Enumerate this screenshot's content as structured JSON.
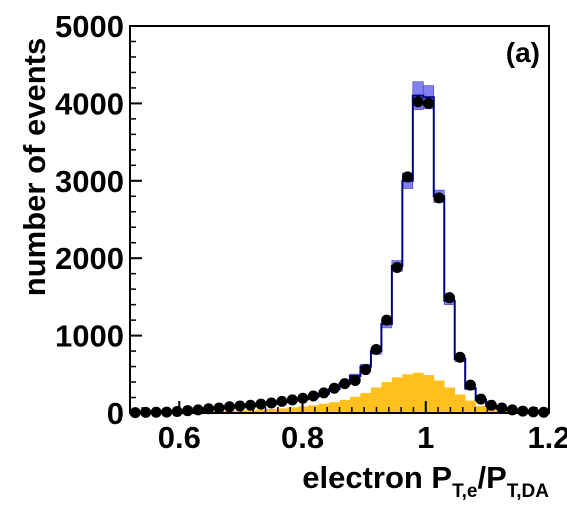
{
  "chart_data": {
    "type": "bar",
    "panel_label": "(a)",
    "ylabel": "number of events",
    "xlabel_main": "electron P",
    "xlabel_sub1": "T,e",
    "xlabel_slash": "/P",
    "xlabel_sub2": "T,DA",
    "xlim": [
      0.52,
      1.2
    ],
    "ylim": [
      0,
      5000
    ],
    "x_ticks": [
      {
        "value": 0.6,
        "label": "0.6"
      },
      {
        "value": 0.8,
        "label": "0.8"
      },
      {
        "value": 1.0,
        "label": "1"
      },
      {
        "value": 1.2,
        "label": "1.2"
      }
    ],
    "y_ticks": [
      {
        "value": 0,
        "label": "0"
      },
      {
        "value": 1000,
        "label": "1000"
      },
      {
        "value": 2000,
        "label": "2000"
      },
      {
        "value": 3000,
        "label": "3000"
      },
      {
        "value": 4000,
        "label": "4000"
      },
      {
        "value": 5000,
        "label": "5000"
      }
    ],
    "bin_edges": [
      0.52,
      0.537,
      0.554,
      0.571,
      0.588,
      0.605,
      0.622,
      0.639,
      0.656,
      0.673,
      0.69,
      0.707,
      0.724,
      0.741,
      0.758,
      0.775,
      0.792,
      0.809,
      0.826,
      0.843,
      0.86,
      0.877,
      0.894,
      0.911,
      0.928,
      0.945,
      0.962,
      0.979,
      0.996,
      1.013,
      1.03,
      1.047,
      1.064,
      1.081,
      1.098,
      1.115,
      1.132,
      1.149,
      1.166,
      1.183,
      1.2
    ],
    "series": [
      {
        "kind": "mc_total",
        "color": "#000080",
        "band_color": "#8080f0",
        "values": [
          5,
          8,
          10,
          15,
          20,
          30,
          40,
          50,
          60,
          70,
          80,
          90,
          110,
          120,
          140,
          160,
          180,
          210,
          250,
          310,
          380,
          480,
          600,
          800,
          1150,
          1900,
          3000,
          4100,
          4080,
          2800,
          1450,
          700,
          320,
          170,
          90,
          60,
          40,
          25,
          15,
          10
        ],
        "band_half_width": [
          3,
          3,
          4,
          4,
          5,
          5,
          6,
          6,
          6,
          7,
          7,
          8,
          8,
          9,
          9,
          10,
          10,
          12,
          13,
          15,
          18,
          22,
          30,
          40,
          50,
          70,
          100,
          180,
          150,
          80,
          50,
          35,
          20,
          12,
          8,
          6,
          5,
          4,
          3,
          3
        ]
      },
      {
        "kind": "background",
        "color": "#ffc020",
        "values": [
          2,
          3,
          4,
          6,
          8,
          10,
          14,
          18,
          22,
          26,
          30,
          36,
          44,
          52,
          60,
          72,
          85,
          100,
          120,
          140,
          170,
          210,
          260,
          330,
          400,
          460,
          500,
          520,
          490,
          420,
          330,
          240,
          160,
          90,
          55,
          35,
          22,
          14,
          8,
          5
        ]
      },
      {
        "kind": "data",
        "color": "#000000",
        "values": [
          5,
          8,
          10,
          12,
          20,
          30,
          40,
          55,
          65,
          80,
          90,
          100,
          115,
          130,
          150,
          170,
          190,
          220,
          260,
          320,
          380,
          420,
          560,
          820,
          1200,
          1880,
          3050,
          4020,
          4000,
          2780,
          1490,
          720,
          360,
          180,
          100,
          65,
          40,
          25,
          15,
          10
        ]
      }
    ]
  }
}
